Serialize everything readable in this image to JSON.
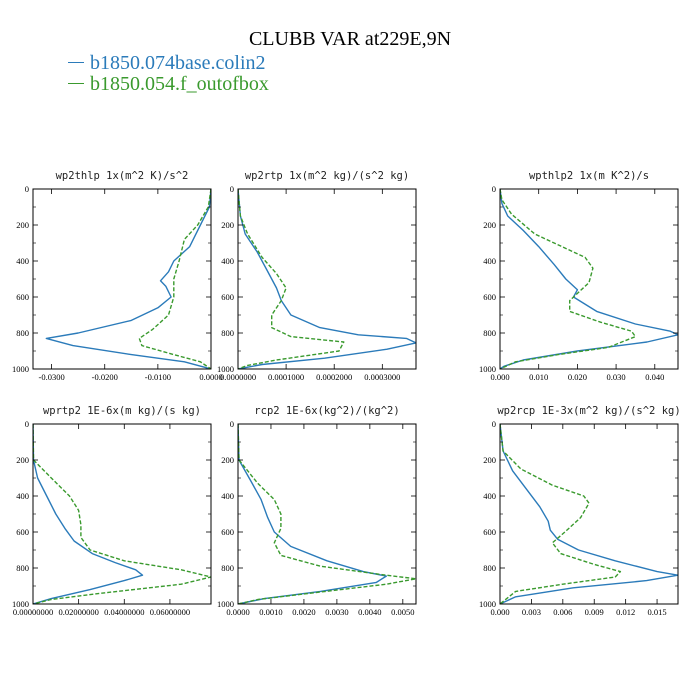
{
  "title": "CLUBB VAR at229E,9N",
  "legend": [
    {
      "label": "b1850.074base.colin2",
      "color": "#2b7bba",
      "dash": "none"
    },
    {
      "label": "b1850.054.f_outofbox",
      "color": "#3a9a2e",
      "dash": "4,2"
    }
  ],
  "chart_data": [
    {
      "type": "line",
      "title": "wp2thlp  1x(m^2 K)/s^2",
      "xlim": [
        -0.0335,
        0.0
      ],
      "ylim": [
        0,
        1000
      ],
      "y_inverted": true,
      "xticks": [
        -0.03,
        -0.02,
        -0.01,
        0.0
      ],
      "xtick_labels": [
        "-0.0300",
        "-0.0200",
        "-0.0100",
        "0.0000"
      ],
      "yticks": [
        0,
        200,
        400,
        600,
        800,
        1000
      ],
      "ytick_labels": [
        "0",
        "200",
        "400",
        "600",
        "800",
        "1000"
      ],
      "series": [
        {
          "points": [
            [
              0,
              0
            ],
            [
              -0.0003,
              100
            ],
            [
              -0.002,
              200
            ],
            [
              -0.004,
              320
            ],
            [
              -0.007,
              400
            ],
            [
              -0.008,
              460
            ],
            [
              -0.0095,
              510
            ],
            [
              -0.0085,
              540
            ],
            [
              -0.0075,
              600
            ],
            [
              -0.01,
              660
            ],
            [
              -0.015,
              730
            ],
            [
              -0.025,
              800
            ],
            [
              -0.031,
              830
            ],
            [
              -0.026,
              870
            ],
            [
              -0.015,
              920
            ],
            [
              -0.005,
              960
            ],
            [
              0,
              1000
            ]
          ]
        },
        {
          "points": [
            [
              0,
              0
            ],
            [
              -0.0005,
              100
            ],
            [
              -0.0025,
              200
            ],
            [
              -0.005,
              280
            ],
            [
              -0.006,
              400
            ],
            [
              -0.007,
              500
            ],
            [
              -0.007,
              600
            ],
            [
              -0.008,
              700
            ],
            [
              -0.011,
              780
            ],
            [
              -0.0135,
              830
            ],
            [
              -0.013,
              870
            ],
            [
              -0.007,
              920
            ],
            [
              -0.002,
              960
            ],
            [
              0,
              1000
            ]
          ]
        }
      ]
    },
    {
      "type": "line",
      "title": "wp2rtp  1x(m^2 kg)/(s^2 kg)",
      "xlim": [
        0.0,
        0.00037
      ],
      "ylim": [
        0,
        1000
      ],
      "y_inverted": true,
      "xticks": [
        0.0,
        0.0001,
        0.0002,
        0.0003
      ],
      "xtick_labels": [
        "0.0000000",
        "0.0001000",
        "0.0002000",
        "0.0003000"
      ],
      "yticks": [
        0,
        200,
        400,
        600,
        800,
        1000
      ],
      "ytick_labels": [
        "0",
        "200",
        "400",
        "600",
        "800",
        "1000"
      ],
      "series": [
        {
          "points": [
            [
              0,
              0
            ],
            [
              5e-06,
              150
            ],
            [
              1.5e-05,
              250
            ],
            [
              4e-05,
              350
            ],
            [
              6e-05,
              450
            ],
            [
              8e-05,
              550
            ],
            [
              9e-05,
              620
            ],
            [
              0.00011,
              700
            ],
            [
              0.00017,
              770
            ],
            [
              0.00025,
              810
            ],
            [
              0.00035,
              830
            ],
            [
              0.00037,
              855
            ],
            [
              0.00031,
              890
            ],
            [
              0.00018,
              940
            ],
            [
              5e-05,
              975
            ],
            [
              0,
              1000
            ]
          ]
        },
        {
          "points": [
            [
              0,
              0
            ],
            [
              5e-06,
              150
            ],
            [
              2e-05,
              250
            ],
            [
              5e-05,
              380
            ],
            [
              8e-05,
              470
            ],
            [
              0.0001,
              550
            ],
            [
              9e-05,
              620
            ],
            [
              7e-05,
              700
            ],
            [
              7e-05,
              770
            ],
            [
              0.00011,
              820
            ],
            [
              0.00022,
              850
            ],
            [
              0.00021,
              900
            ],
            [
              8e-05,
              950
            ],
            [
              2e-05,
              980
            ],
            [
              0,
              1000
            ]
          ]
        }
      ]
    },
    {
      "type": "line",
      "title": "wpthlp2  1x(m K^2)/s",
      "xlim": [
        0.0,
        0.046
      ],
      "ylim": [
        0,
        1000
      ],
      "y_inverted": true,
      "xticks": [
        0.0,
        0.01,
        0.02,
        0.03,
        0.04
      ],
      "xtick_labels": [
        "0.000",
        "0.010",
        "0.020",
        "0.030",
        "0.040"
      ],
      "yticks": [
        0,
        200,
        400,
        600,
        800,
        1000
      ],
      "ytick_labels": [
        "0",
        "200",
        "400",
        "600",
        "800",
        "1000"
      ],
      "series": [
        {
          "points": [
            [
              0,
              0
            ],
            [
              0.0005,
              80
            ],
            [
              0.002,
              150
            ],
            [
              0.006,
              230
            ],
            [
              0.01,
              320
            ],
            [
              0.014,
              420
            ],
            [
              0.017,
              500
            ],
            [
              0.02,
              560
            ],
            [
              0.019,
              600
            ],
            [
              0.025,
              680
            ],
            [
              0.035,
              750
            ],
            [
              0.044,
              790
            ],
            [
              0.046,
              810
            ],
            [
              0.038,
              850
            ],
            [
              0.02,
              900
            ],
            [
              0.006,
              950
            ],
            [
              0.001,
              985
            ],
            [
              0,
              1000
            ]
          ]
        },
        {
          "points": [
            [
              0,
              0
            ],
            [
              0.0005,
              60
            ],
            [
              0.003,
              140
            ],
            [
              0.009,
              250
            ],
            [
              0.016,
              320
            ],
            [
              0.022,
              380
            ],
            [
              0.024,
              440
            ],
            [
              0.023,
              520
            ],
            [
              0.018,
              620
            ],
            [
              0.018,
              680
            ],
            [
              0.026,
              740
            ],
            [
              0.034,
              790
            ],
            [
              0.035,
              820
            ],
            [
              0.028,
              880
            ],
            [
              0.015,
              920
            ],
            [
              0.004,
              960
            ],
            [
              0,
              1000
            ]
          ]
        }
      ]
    },
    {
      "type": "line",
      "title": "wprtp2  1E-6x(m kg)/(s kg)",
      "xlim": [
        0.0,
        0.078
      ],
      "ylim": [
        0,
        1000
      ],
      "y_inverted": true,
      "xticks": [
        0.0,
        0.02,
        0.04,
        0.06
      ],
      "xtick_labels": [
        "0.00000000",
        "0.02000000",
        "0.04000000",
        "0.06000000"
      ],
      "yticks": [
        0,
        200,
        400,
        600,
        800,
        1000
      ],
      "ytick_labels": [
        "0",
        "200",
        "400",
        "600",
        "800",
        "1000"
      ],
      "series": [
        {
          "points": [
            [
              0,
              0
            ],
            [
              0.0002,
              200
            ],
            [
              0.002,
              300
            ],
            [
              0.006,
              400
            ],
            [
              0.01,
              500
            ],
            [
              0.014,
              580
            ],
            [
              0.018,
              650
            ],
            [
              0.026,
              720
            ],
            [
              0.036,
              770
            ],
            [
              0.045,
              810
            ],
            [
              0.048,
              840
            ],
            [
              0.04,
              870
            ],
            [
              0.025,
              920
            ],
            [
              0.008,
              970
            ],
            [
              0,
              1000
            ]
          ]
        },
        {
          "points": [
            [
              0,
              0
            ],
            [
              0.0002,
              200
            ],
            [
              0.008,
              300
            ],
            [
              0.016,
              400
            ],
            [
              0.02,
              480
            ],
            [
              0.021,
              560
            ],
            [
              0.021,
              630
            ],
            [
              0.025,
              700
            ],
            [
              0.04,
              760
            ],
            [
              0.065,
              810
            ],
            [
              0.078,
              850
            ],
            [
              0.065,
              890
            ],
            [
              0.03,
              940
            ],
            [
              0.008,
              975
            ],
            [
              0,
              1000
            ]
          ]
        }
      ]
    },
    {
      "type": "line",
      "title": "rcp2  1E-6x(kg^2)/(kg^2)",
      "xlim": [
        0.0,
        0.0054
      ],
      "ylim": [
        0,
        1000
      ],
      "y_inverted": true,
      "xticks": [
        0.0,
        0.001,
        0.002,
        0.003,
        0.004,
        0.005
      ],
      "xtick_labels": [
        "0.0000",
        "0.0010",
        "0.0020",
        "0.0030",
        "0.0040",
        "0.0050"
      ],
      "yticks": [
        0,
        200,
        400,
        600,
        800,
        1000
      ],
      "ytick_labels": [
        "0",
        "200",
        "400",
        "600",
        "800",
        "1000"
      ],
      "series": [
        {
          "points": [
            [
              0,
              0
            ],
            [
              3e-05,
              200
            ],
            [
              0.0004,
              320
            ],
            [
              0.0007,
              420
            ],
            [
              0.0009,
              520
            ],
            [
              0.0011,
              600
            ],
            [
              0.0016,
              680
            ],
            [
              0.0027,
              760
            ],
            [
              0.0038,
              820
            ],
            [
              0.0045,
              845
            ],
            [
              0.0042,
              880
            ],
            [
              0.0025,
              930
            ],
            [
              0.0008,
              970
            ],
            [
              0,
              1000
            ]
          ]
        },
        {
          "points": [
            [
              0,
              0
            ],
            [
              3e-05,
              200
            ],
            [
              0.0006,
              330
            ],
            [
              0.0011,
              420
            ],
            [
              0.0013,
              500
            ],
            [
              0.0013,
              580
            ],
            [
              0.0011,
              660
            ],
            [
              0.0013,
              730
            ],
            [
              0.0025,
              790
            ],
            [
              0.0045,
              840
            ],
            [
              0.0054,
              860
            ],
            [
              0.0045,
              890
            ],
            [
              0.0022,
              940
            ],
            [
              0.0006,
              975
            ],
            [
              0,
              1000
            ]
          ]
        }
      ]
    },
    {
      "type": "line",
      "title": "wp2rcp  1E-3x(m^2 kg)/(s^2 kg)",
      "xlim": [
        0.0,
        0.017
      ],
      "ylim": [
        0,
        1000
      ],
      "y_inverted": true,
      "xticks": [
        0.0,
        0.003,
        0.006,
        0.009,
        0.012,
        0.015
      ],
      "xtick_labels": [
        "0.000",
        "0.003",
        "0.006",
        "0.009",
        "0.012",
        "0.015"
      ],
      "yticks": [
        0,
        200,
        400,
        600,
        800,
        1000
      ],
      "ytick_labels": [
        "0",
        "200",
        "400",
        "600",
        "800",
        "1000"
      ],
      "series": [
        {
          "points": [
            [
              0,
              0
            ],
            [
              0.0003,
              150
            ],
            [
              0.0012,
              260
            ],
            [
              0.0025,
              360
            ],
            [
              0.0038,
              460
            ],
            [
              0.0046,
              540
            ],
            [
              0.0048,
              590
            ],
            [
              0.0055,
              640
            ],
            [
              0.0075,
              700
            ],
            [
              0.011,
              760
            ],
            [
              0.015,
              820
            ],
            [
              0.017,
              840
            ],
            [
              0.014,
              870
            ],
            [
              0.007,
              910
            ],
            [
              0.0015,
              960
            ],
            [
              0,
              1000
            ]
          ]
        },
        {
          "points": [
            [
              0,
              0
            ],
            [
              0.0003,
              150
            ],
            [
              0.002,
              250
            ],
            [
              0.005,
              340
            ],
            [
              0.008,
              400
            ],
            [
              0.0085,
              440
            ],
            [
              0.0077,
              520
            ],
            [
              0.0062,
              600
            ],
            [
              0.005,
              660
            ],
            [
              0.0058,
              720
            ],
            [
              0.009,
              780
            ],
            [
              0.0115,
              820
            ],
            [
              0.011,
              850
            ],
            [
              0.006,
              890
            ],
            [
              0.0015,
              930
            ],
            [
              0,
              1000
            ]
          ]
        }
      ]
    }
  ]
}
